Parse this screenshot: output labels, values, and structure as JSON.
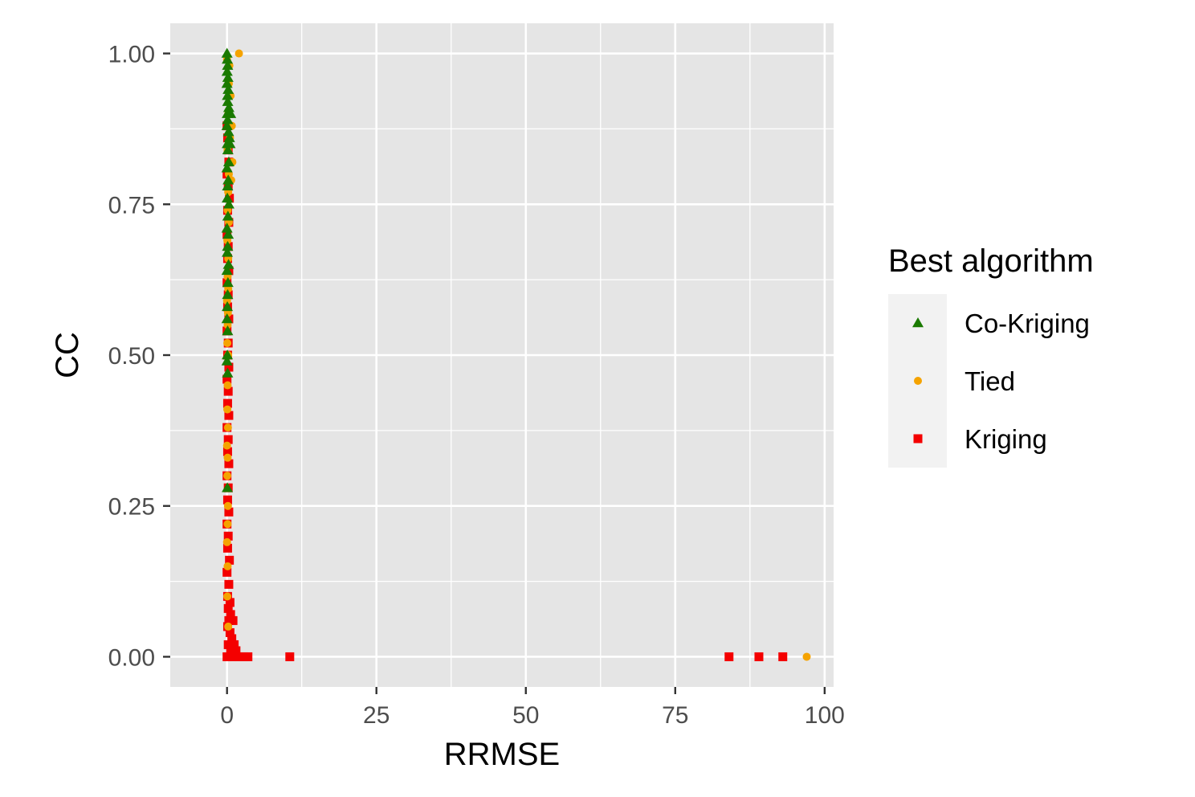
{
  "chart_data": {
    "type": "scatter",
    "xlabel": "RRMSE",
    "ylabel": "CC",
    "xlim": [
      -9.5,
      101.5
    ],
    "ylim": [
      -0.05,
      1.05
    ],
    "x_ticks": [
      0,
      25,
      50,
      75,
      100
    ],
    "x_tick_labels": [
      "0",
      "25",
      "50",
      "75",
      "100"
    ],
    "y_ticks": [
      0,
      0.25,
      0.5,
      0.75,
      1.0
    ],
    "y_tick_labels": [
      "0.00",
      "0.25",
      "0.50",
      "0.75",
      "1.00"
    ],
    "grid": true,
    "legend": {
      "title": "Best algorithm",
      "position": "right",
      "entries": [
        {
          "label": "Co-Kriging",
          "shape": "triangle",
          "color": "#1a7a00"
        },
        {
          "label": "Tied",
          "shape": "circle",
          "color": "#f5a300"
        },
        {
          "label": "Kriging",
          "shape": "square",
          "color": "#f40000"
        }
      ]
    },
    "series": [
      {
        "name": "Co-Kriging",
        "shape": "triangle",
        "color": "#1a7a00",
        "points": [
          [
            0.0,
            1.0
          ],
          [
            0.05,
            0.99
          ],
          [
            0.1,
            0.98
          ],
          [
            0.02,
            0.97
          ],
          [
            0.15,
            0.96
          ],
          [
            0.0,
            0.95
          ],
          [
            0.2,
            0.94
          ],
          [
            0.08,
            0.93
          ],
          [
            0.12,
            0.92
          ],
          [
            0.3,
            0.91
          ],
          [
            0.05,
            0.9
          ],
          [
            0.6,
            0.9
          ],
          [
            0.1,
            0.89
          ],
          [
            0.0,
            0.88
          ],
          [
            0.25,
            0.87
          ],
          [
            0.4,
            0.86
          ],
          [
            0.05,
            0.85
          ],
          [
            0.5,
            0.85
          ],
          [
            0.15,
            0.84
          ],
          [
            0.3,
            0.82
          ],
          [
            0.0,
            0.81
          ],
          [
            0.2,
            0.79
          ],
          [
            0.1,
            0.78
          ],
          [
            0.05,
            0.76
          ],
          [
            0.3,
            0.75
          ],
          [
            0.15,
            0.73
          ],
          [
            0.0,
            0.71
          ],
          [
            0.2,
            0.7
          ],
          [
            0.1,
            0.68
          ],
          [
            0.05,
            0.67
          ],
          [
            0.25,
            0.65
          ],
          [
            0.0,
            0.64
          ],
          [
            0.15,
            0.62
          ],
          [
            0.1,
            0.6
          ],
          [
            0.05,
            0.58
          ],
          [
            0.0,
            0.56
          ],
          [
            0.1,
            0.54
          ],
          [
            0.05,
            0.5
          ],
          [
            0.0,
            0.49
          ],
          [
            0.1,
            0.47
          ],
          [
            0.05,
            0.28
          ]
        ]
      },
      {
        "name": "Tied",
        "shape": "circle",
        "color": "#f5a300",
        "points": [
          [
            0.0,
            0.99
          ],
          [
            2.0,
            1.0
          ],
          [
            0.4,
            0.98
          ],
          [
            0.3,
            0.95
          ],
          [
            0.6,
            0.93
          ],
          [
            0.2,
            0.9
          ],
          [
            0.8,
            0.88
          ],
          [
            0.5,
            0.86
          ],
          [
            0.1,
            0.84
          ],
          [
            0.9,
            0.82
          ],
          [
            0.3,
            0.8
          ],
          [
            0.7,
            0.79
          ],
          [
            0.2,
            0.77
          ],
          [
            0.1,
            0.74
          ],
          [
            0.3,
            0.72
          ],
          [
            0.05,
            0.69
          ],
          [
            0.2,
            0.66
          ],
          [
            0.1,
            0.63
          ],
          [
            0.2,
            0.61
          ],
          [
            0.0,
            0.59
          ],
          [
            0.15,
            0.57
          ],
          [
            0.1,
            0.55
          ],
          [
            0.05,
            0.52
          ],
          [
            0.2,
            0.5
          ],
          [
            0.1,
            0.45
          ],
          [
            0.05,
            0.41
          ],
          [
            0.15,
            0.38
          ],
          [
            0.0,
            0.35
          ],
          [
            0.1,
            0.33
          ],
          [
            0.05,
            0.3
          ],
          [
            0.15,
            0.25
          ],
          [
            0.1,
            0.22
          ],
          [
            0.0,
            0.19
          ],
          [
            0.1,
            0.15
          ],
          [
            0.05,
            0.1
          ],
          [
            0.2,
            0.05
          ],
          [
            97.0,
            0.0
          ]
        ]
      },
      {
        "name": "Kriging",
        "shape": "square",
        "color": "#f40000",
        "points": [
          [
            0.0,
            0.88
          ],
          [
            0.1,
            0.86
          ],
          [
            0.2,
            0.84
          ],
          [
            0.3,
            0.82
          ],
          [
            0.0,
            0.8
          ],
          [
            0.2,
            0.78
          ],
          [
            0.4,
            0.76
          ],
          [
            0.1,
            0.74
          ],
          [
            0.3,
            0.72
          ],
          [
            0.0,
            0.7
          ],
          [
            0.2,
            0.68
          ],
          [
            0.1,
            0.66
          ],
          [
            0.3,
            0.64
          ],
          [
            0.0,
            0.62
          ],
          [
            0.2,
            0.6
          ],
          [
            0.1,
            0.58
          ],
          [
            0.3,
            0.56
          ],
          [
            0.0,
            0.54
          ],
          [
            0.2,
            0.52
          ],
          [
            0.1,
            0.5
          ],
          [
            0.3,
            0.48
          ],
          [
            0.0,
            0.46
          ],
          [
            0.2,
            0.44
          ],
          [
            0.1,
            0.42
          ],
          [
            0.3,
            0.4
          ],
          [
            0.0,
            0.38
          ],
          [
            0.2,
            0.36
          ],
          [
            0.1,
            0.34
          ],
          [
            0.3,
            0.32
          ],
          [
            0.0,
            0.3
          ],
          [
            0.2,
            0.28
          ],
          [
            0.1,
            0.26
          ],
          [
            0.3,
            0.24
          ],
          [
            0.0,
            0.22
          ],
          [
            0.2,
            0.2
          ],
          [
            0.1,
            0.18
          ],
          [
            0.4,
            0.16
          ],
          [
            0.0,
            0.14
          ],
          [
            0.3,
            0.12
          ],
          [
            0.1,
            0.1
          ],
          [
            0.5,
            0.09
          ],
          [
            0.2,
            0.08
          ],
          [
            0.6,
            0.07
          ],
          [
            0.3,
            0.06
          ],
          [
            1.0,
            0.06
          ],
          [
            0.1,
            0.05
          ],
          [
            0.5,
            0.04
          ],
          [
            0.8,
            0.03
          ],
          [
            0.2,
            0.02
          ],
          [
            1.2,
            0.02
          ],
          [
            0.6,
            0.01
          ],
          [
            1.5,
            0.01
          ],
          [
            0.0,
            0.0
          ],
          [
            0.8,
            0.0
          ],
          [
            2.0,
            0.0
          ],
          [
            2.8,
            0.0
          ],
          [
            3.5,
            0.0
          ],
          [
            10.5,
            0.0
          ],
          [
            84.0,
            0.0
          ],
          [
            89.0,
            0.0
          ],
          [
            93.0,
            0.0
          ]
        ]
      }
    ]
  }
}
